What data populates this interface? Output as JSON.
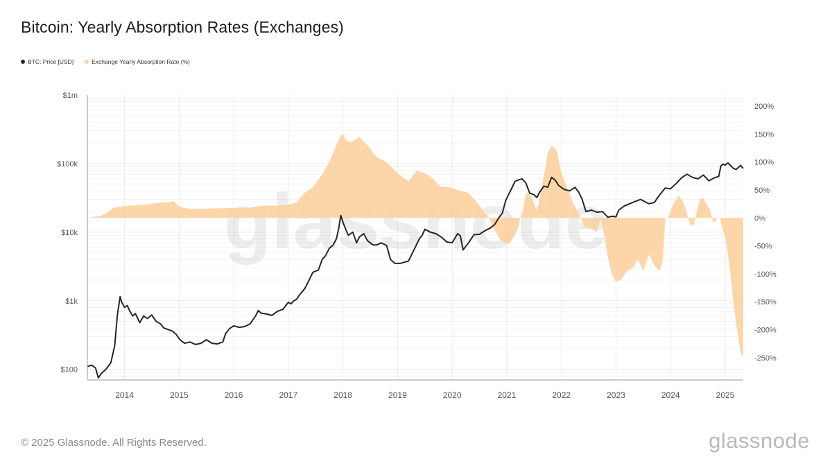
{
  "title": "Bitcoin: Yearly Absorption Rates (Exchanges)",
  "footer": "© 2025 Glassnode. All Rights Reserved.",
  "brand": "glassnode",
  "watermark": "glassnode",
  "colors": {
    "price": "#262626",
    "absorption": "#fcd29f",
    "grid": "#ebebeb",
    "axis_text": "#555555"
  },
  "chart_data": {
    "type": "line",
    "legend_position": "top-left",
    "grid": true,
    "x_range": [
      2013.32,
      2025.33
    ],
    "x_ticks": [
      "2014",
      "2015",
      "2016",
      "2017",
      "2018",
      "2019",
      "2020",
      "2021",
      "2022",
      "2023",
      "2024",
      "2025"
    ],
    "y_left": {
      "scale": "log",
      "range": [
        70,
        1000000
      ],
      "ticks": [
        {
          "value": 100,
          "label": "$100"
        },
        {
          "value": 1000,
          "label": "$1k"
        },
        {
          "value": 10000,
          "label": "$10k"
        },
        {
          "value": 100000,
          "label": "$100k"
        },
        {
          "value": 1000000,
          "label": "$1m"
        }
      ]
    },
    "y_right": {
      "scale": "linear",
      "range": [
        -290,
        220
      ],
      "ticks": [
        {
          "value": 200,
          "label": "200%"
        },
        {
          "value": 150,
          "label": "150%"
        },
        {
          "value": 100,
          "label": "100%"
        },
        {
          "value": 50,
          "label": "50%"
        },
        {
          "value": 0,
          "label": "0%"
        },
        {
          "value": -50,
          "label": "-50%"
        },
        {
          "value": -100,
          "label": "-100%"
        },
        {
          "value": -150,
          "label": "-150%"
        },
        {
          "value": -200,
          "label": "-200%"
        },
        {
          "value": -250,
          "label": "-250%"
        }
      ]
    },
    "series": [
      {
        "name": "BTC: Price [USD]",
        "type": "line",
        "axis": "left",
        "x": [
          2013.32,
          2013.4,
          2013.47,
          2013.52,
          2013.58,
          2013.66,
          2013.75,
          2013.82,
          2013.87,
          2013.92,
          2013.95,
          2014.0,
          2014.05,
          2014.1,
          2014.15,
          2014.2,
          2014.28,
          2014.35,
          2014.42,
          2014.5,
          2014.58,
          2014.66,
          2014.72,
          2014.8,
          2014.88,
          2014.95,
          2015.0,
          2015.04,
          2015.1,
          2015.2,
          2015.3,
          2015.4,
          2015.5,
          2015.6,
          2015.7,
          2015.8,
          2015.85,
          2015.92,
          2016.0,
          2016.1,
          2016.2,
          2016.3,
          2016.4,
          2016.45,
          2016.5,
          2016.6,
          2016.7,
          2016.8,
          2016.9,
          2017.0,
          2017.05,
          2017.1,
          2017.15,
          2017.2,
          2017.3,
          2017.38,
          2017.45,
          2017.55,
          2017.62,
          2017.68,
          2017.75,
          2017.82,
          2017.88,
          2017.92,
          2017.96,
          2018.0,
          2018.05,
          2018.1,
          2018.18,
          2018.25,
          2018.3,
          2018.38,
          2018.45,
          2018.55,
          2018.62,
          2018.7,
          2018.8,
          2018.87,
          2018.95,
          2019.05,
          2019.2,
          2019.3,
          2019.4,
          2019.45,
          2019.5,
          2019.6,
          2019.7,
          2019.8,
          2019.9,
          2020.0,
          2020.1,
          2020.15,
          2020.2,
          2020.3,
          2020.4,
          2020.5,
          2020.6,
          2020.7,
          2020.78,
          2020.85,
          2020.92,
          2020.98,
          2021.03,
          2021.1,
          2021.15,
          2021.22,
          2021.28,
          2021.35,
          2021.42,
          2021.5,
          2021.55,
          2021.6,
          2021.68,
          2021.75,
          2021.82,
          2021.88,
          2021.95,
          2022.05,
          2022.15,
          2022.25,
          2022.32,
          2022.38,
          2022.45,
          2022.55,
          2022.65,
          2022.75,
          2022.85,
          2022.92,
          2023.0,
          2023.05,
          2023.15,
          2023.3,
          2023.45,
          2023.6,
          2023.7,
          2023.8,
          2023.9,
          2024.0,
          2024.1,
          2024.2,
          2024.3,
          2024.4,
          2024.5,
          2024.6,
          2024.7,
          2024.8,
          2024.88,
          2024.92,
          2024.96,
          2025.0,
          2025.05,
          2025.1,
          2025.15,
          2025.2,
          2025.28,
          2025.33
        ],
        "y": [
          110,
          115,
          105,
          75,
          88,
          100,
          125,
          220,
          620,
          1150,
          950,
          800,
          850,
          700,
          600,
          650,
          480,
          600,
          550,
          620,
          500,
          460,
          400,
          380,
          360,
          320,
          280,
          260,
          240,
          250,
          230,
          240,
          270,
          240,
          235,
          250,
          330,
          390,
          430,
          410,
          420,
          460,
          600,
          720,
          660,
          640,
          610,
          700,
          750,
          950,
          900,
          1000,
          1050,
          1200,
          1500,
          2000,
          2600,
          2800,
          4000,
          4500,
          5800,
          6500,
          8000,
          11000,
          17500,
          14000,
          11000,
          9000,
          10000,
          7000,
          8500,
          9500,
          7500,
          6500,
          6500,
          7000,
          6400,
          4000,
          3500,
          3500,
          3800,
          5500,
          8000,
          9000,
          11000,
          10000,
          9500,
          8500,
          7200,
          7000,
          9500,
          8800,
          5500,
          7000,
          9200,
          9300,
          10500,
          11500,
          13000,
          16000,
          19000,
          29000,
          35000,
          45000,
          55000,
          58000,
          60000,
          52000,
          37000,
          35000,
          32000,
          38000,
          47000,
          45000,
          63000,
          58000,
          48000,
          42000,
          40000,
          45000,
          38000,
          30000,
          20000,
          21000,
          19500,
          20000,
          16500,
          17000,
          16800,
          21000,
          24000,
          27000,
          30000,
          26000,
          27000,
          35000,
          44000,
          43000,
          51000,
          62000,
          70000,
          63000,
          60000,
          68000,
          56000,
          62000,
          65000,
          92000,
          98000,
          95000,
          102000,
          93000,
          85000,
          82000,
          94000,
          85000
        ]
      },
      {
        "name": "Exchange Yearly Absorption Rate (%)",
        "type": "area",
        "axis": "right",
        "x": [
          2013.32,
          2013.45,
          2013.55,
          2013.6,
          2013.68,
          2013.75,
          2013.8,
          2013.9,
          2014.1,
          2014.4,
          2014.6,
          2014.8,
          2014.9,
          2015.0,
          2015.2,
          2015.6,
          2016.0,
          2016.3,
          2016.5,
          2016.8,
          2017.0,
          2017.15,
          2017.3,
          2017.45,
          2017.6,
          2017.75,
          2017.88,
          2017.96,
          2018.0,
          2018.05,
          2018.15,
          2018.3,
          2018.45,
          2018.6,
          2018.8,
          2019.0,
          2019.2,
          2019.35,
          2019.5,
          2019.65,
          2019.8,
          2019.95,
          2020.1,
          2020.3,
          2020.45,
          2020.6,
          2020.7,
          2020.8,
          2020.85,
          2020.95,
          2021.05,
          2021.12,
          2021.2,
          2021.25,
          2021.3,
          2021.35,
          2021.45,
          2021.55,
          2021.65,
          2021.75,
          2021.82,
          2021.92,
          2022.0,
          2022.1,
          2022.2,
          2022.3,
          2022.42,
          2022.55,
          2022.65,
          2022.72,
          2022.8,
          2022.85,
          2022.92,
          2023.0,
          2023.1,
          2023.2,
          2023.3,
          2023.4,
          2023.5,
          2023.6,
          2023.7,
          2023.8,
          2023.85,
          2023.88,
          2023.9,
          2023.95,
          2024.05,
          2024.15,
          2024.22,
          2024.28,
          2024.35,
          2024.42,
          2024.5,
          2024.55,
          2024.6,
          2024.65,
          2024.72,
          2024.78,
          2024.85,
          2024.9,
          2024.95,
          2025.0,
          2025.05,
          2025.1,
          2025.15,
          2025.2,
          2025.25,
          2025.28,
          2025.33
        ],
        "y": [
          0,
          2,
          3,
          5,
          10,
          14,
          18,
          20,
          22,
          24,
          27,
          28,
          30,
          20,
          16,
          17,
          18,
          18,
          22,
          22,
          24,
          28,
          45,
          55,
          75,
          100,
          130,
          148,
          150,
          140,
          135,
          145,
          130,
          110,
          100,
          80,
          65,
          85,
          80,
          70,
          55,
          55,
          50,
          45,
          28,
          10,
          -5,
          -25,
          -35,
          -45,
          -45,
          -35,
          -20,
          0,
          15,
          45,
          40,
          10,
          60,
          115,
          130,
          120,
          80,
          55,
          30,
          10,
          -15,
          -20,
          -25,
          0,
          -40,
          -70,
          -100,
          -115,
          -110,
          -95,
          -90,
          -75,
          -95,
          -65,
          -85,
          -95,
          -80,
          -40,
          0,
          0,
          25,
          40,
          30,
          15,
          -10,
          -15,
          20,
          35,
          35,
          25,
          15,
          -10,
          0,
          0,
          -20,
          -35,
          -65,
          -105,
          -150,
          -190,
          -220,
          -240,
          -250
        ]
      }
    ]
  }
}
